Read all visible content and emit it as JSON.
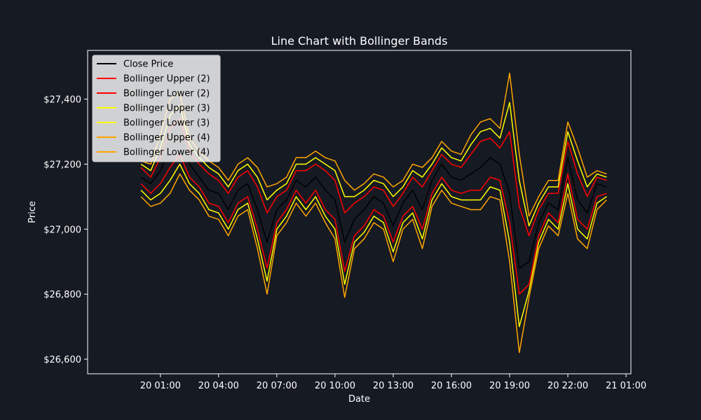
{
  "chart_data": {
    "type": "line",
    "title": "Line Chart with Bollinger Bands",
    "xlabel": "Date",
    "ylabel": "Price",
    "x_tick_labels": [
      "20 01:00",
      "20 04:00",
      "20 07:00",
      "20 10:00",
      "20 13:00",
      "20 16:00",
      "20 19:00",
      "20 22:00",
      "21 01:00"
    ],
    "y_tick_labels": [
      "$26,600",
      "$26,800",
      "$27,000",
      "$27,200",
      "$27,400"
    ],
    "y_ticks": [
      26600,
      26800,
      27000,
      27200,
      27400
    ],
    "xlim": [
      "20 00:00",
      "21 01:00"
    ],
    "ylim": [
      26555,
      27550
    ],
    "grid": false,
    "legend_position": "upper-left",
    "x": [
      "20 00:00",
      "20 00:30",
      "20 01:00",
      "20 01:30",
      "20 02:00",
      "20 02:30",
      "20 03:00",
      "20 03:30",
      "20 04:00",
      "20 04:30",
      "20 05:00",
      "20 05:30",
      "20 06:00",
      "20 06:30",
      "20 07:00",
      "20 07:30",
      "20 08:00",
      "20 08:30",
      "20 09:00",
      "20 09:30",
      "20 10:00",
      "20 10:30",
      "20 11:00",
      "20 11:30",
      "20 12:00",
      "20 12:30",
      "20 13:00",
      "20 13:30",
      "20 14:00",
      "20 14:30",
      "20 15:00",
      "20 15:30",
      "20 16:00",
      "20 16:30",
      "20 17:00",
      "20 17:30",
      "20 18:00",
      "20 18:30",
      "20 19:00",
      "20 19:30",
      "20 20:00",
      "20 20:30",
      "20 21:00",
      "20 21:30",
      "20 22:00",
      "20 22:30",
      "20 23:00",
      "20 23:30",
      "21 00:00"
    ],
    "series": [
      {
        "name": "Close Price",
        "color": "#000000",
        "values": [
          27160,
          27140,
          27180,
          27250,
          27290,
          27200,
          27160,
          27120,
          27110,
          27060,
          27120,
          27140,
          27060,
          26960,
          27060,
          27090,
          27150,
          27130,
          27160,
          27120,
          27090,
          26960,
          27030,
          27060,
          27100,
          27080,
          27010,
          27080,
          27120,
          27060,
          27150,
          27200,
          27160,
          27150,
          27170,
          27190,
          27220,
          27200,
          27110,
          26880,
          26900,
          27020,
          27080,
          27060,
          27220,
          27090,
          27050,
          27140,
          27130
        ]
      },
      {
        "name": "Bollinger Upper (2)",
        "color": "#ff0000",
        "values": [
          27190,
          27160,
          27220,
          27310,
          27340,
          27240,
          27200,
          27170,
          27150,
          27110,
          27160,
          27180,
          27130,
          27050,
          27100,
          27120,
          27180,
          27180,
          27200,
          27180,
          27150,
          27050,
          27080,
          27100,
          27130,
          27120,
          27070,
          27110,
          27160,
          27130,
          27180,
          27230,
          27200,
          27190,
          27230,
          27270,
          27280,
          27250,
          27300,
          27070,
          26980,
          27060,
          27110,
          27110,
          27270,
          27170,
          27100,
          27160,
          27150
        ]
      },
      {
        "name": "Bollinger Lower (2)",
        "color": "#ff0000",
        "values": [
          27140,
          27110,
          27140,
          27190,
          27230,
          27160,
          27130,
          27080,
          27070,
          27020,
          27080,
          27100,
          27000,
          26880,
          27020,
          27060,
          27120,
          27080,
          27120,
          27060,
          27030,
          26870,
          26980,
          27010,
          27060,
          27040,
          26960,
          27040,
          27070,
          27000,
          27110,
          27160,
          27120,
          27110,
          27120,
          27120,
          27160,
          27150,
          27020,
          26800,
          26830,
          26980,
          27050,
          27020,
          27170,
          27030,
          27000,
          27100,
          27110
        ]
      },
      {
        "name": "Bollinger Upper (3)",
        "color": "#ffff00",
        "values": [
          27200,
          27180,
          27250,
          27350,
          27380,
          27260,
          27220,
          27190,
          27170,
          27130,
          27180,
          27200,
          27160,
          27090,
          27120,
          27140,
          27200,
          27200,
          27220,
          27200,
          27180,
          27100,
          27100,
          27120,
          27150,
          27140,
          27100,
          27130,
          27180,
          27160,
          27200,
          27250,
          27220,
          27210,
          27260,
          27300,
          27310,
          27280,
          27390,
          27150,
          27010,
          27080,
          27130,
          27130,
          27300,
          27210,
          27130,
          27170,
          27160
        ]
      },
      {
        "name": "Bollinger Lower (3)",
        "color": "#ffff00",
        "values": [
          27120,
          27090,
          27110,
          27150,
          27200,
          27140,
          27110,
          27060,
          27050,
          27000,
          27060,
          27080,
          26970,
          26840,
          27000,
          27040,
          27100,
          27060,
          27100,
          27040,
          27000,
          26830,
          26960,
          26990,
          27040,
          27020,
          26930,
          27020,
          27050,
          26970,
          27090,
          27140,
          27100,
          27090,
          27090,
          27090,
          27130,
          27120,
          26960,
          26700,
          26810,
          26960,
          27030,
          27000,
          27140,
          27000,
          26970,
          27080,
          27100
        ]
      },
      {
        "name": "Bollinger Upper (4)",
        "color": "#ffa500",
        "values": [
          27210,
          27200,
          27290,
          27400,
          27420,
          27280,
          27240,
          27210,
          27190,
          27150,
          27200,
          27220,
          27190,
          27130,
          27140,
          27160,
          27220,
          27220,
          27240,
          27220,
          27210,
          27150,
          27120,
          27140,
          27170,
          27160,
          27130,
          27150,
          27200,
          27190,
          27220,
          27270,
          27240,
          27230,
          27290,
          27330,
          27340,
          27310,
          27480,
          27230,
          27040,
          27100,
          27150,
          27150,
          27330,
          27250,
          27160,
          27180,
          27170
        ]
      },
      {
        "name": "Bollinger Lower (4)",
        "color": "#ffa500",
        "values": [
          27100,
          27070,
          27080,
          27110,
          27170,
          27120,
          27090,
          27040,
          27030,
          26980,
          27040,
          27060,
          26940,
          26800,
          26980,
          27020,
          27080,
          27040,
          27080,
          27020,
          26970,
          26790,
          26940,
          26970,
          27020,
          27000,
          26900,
          27000,
          27030,
          26940,
          27070,
          27120,
          27080,
          27070,
          27060,
          27060,
          27100,
          27090,
          26900,
          26620,
          26790,
          26940,
          27010,
          26980,
          27110,
          26970,
          26940,
          27060,
          27090
        ]
      }
    ]
  }
}
